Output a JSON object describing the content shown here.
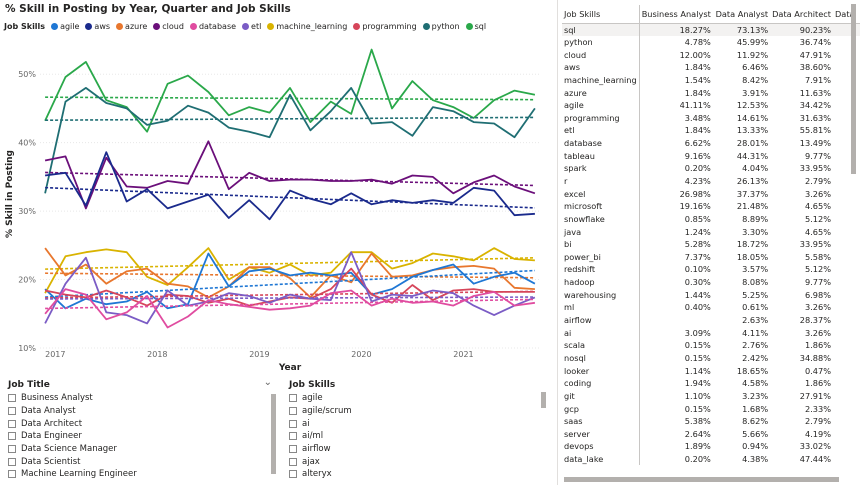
{
  "chart": {
    "title": "% Skill in Posting by Year, Quarter and Job Skills",
    "legend_title": "Job Skills",
    "legend": [
      {
        "name": "agile",
        "color": "#1f77d4"
      },
      {
        "name": "aws",
        "color": "#1a2a8c"
      },
      {
        "name": "azure",
        "color": "#e8772e"
      },
      {
        "name": "cloud",
        "color": "#6b0f7a"
      },
      {
        "name": "database",
        "color": "#e04ca0"
      },
      {
        "name": "etl",
        "color": "#7b5cc5"
      },
      {
        "name": "machine_learning",
        "color": "#d9b300"
      },
      {
        "name": "programming",
        "color": "#d6455a"
      },
      {
        "name": "python",
        "color": "#1f6e73"
      },
      {
        "name": "sql",
        "color": "#2aa84a"
      }
    ]
  },
  "chart_data": {
    "type": "line",
    "title": "% Skill in Posting by Year, Quarter and Job Skills",
    "xlabel": "Year",
    "ylabel": "% Skill in Posting",
    "x_ticks": [
      "2017",
      "2018",
      "2019",
      "2020",
      "2021"
    ],
    "y_ticks": [
      "10%",
      "20%",
      "30%",
      "40%",
      "50%"
    ],
    "ylim": [
      10,
      55
    ],
    "x": [
      2016.9,
      2017.1,
      2017.3,
      2017.5,
      2017.7,
      2017.9,
      2018.1,
      2018.3,
      2018.5,
      2018.7,
      2018.9,
      2019.1,
      2019.3,
      2019.5,
      2019.7,
      2019.9,
      2020.1,
      2020.3,
      2020.5,
      2020.7,
      2020.9,
      2021.1,
      2021.3,
      2021.5,
      2021.7
    ],
    "xlim": [
      2016.85,
      2021.75
    ],
    "trendlines": true,
    "series": [
      {
        "name": "sql",
        "values": [
          43.2,
          49.6,
          51.8,
          46.2,
          45.2,
          41.6,
          48.6,
          49.8,
          47.4,
          44.0,
          45.2,
          44.4,
          48.0,
          43.0,
          46.0,
          44.2,
          53.6,
          45.0,
          49.0,
          46.2,
          45.2,
          43.6,
          46.2,
          47.6,
          47.0
        ]
      },
      {
        "name": "python",
        "values": [
          32.6,
          46.0,
          48.0,
          45.8,
          45.0,
          42.6,
          43.2,
          45.4,
          44.4,
          42.2,
          41.6,
          40.8,
          47.0,
          41.8,
          44.6,
          48.0,
          42.8,
          43.0,
          41.0,
          45.2,
          44.6,
          43.0,
          42.8,
          40.8,
          45.0
        ]
      },
      {
        "name": "cloud",
        "values": [
          37.4,
          38.0,
          30.4,
          37.8,
          33.6,
          33.4,
          34.4,
          34.0,
          40.2,
          33.2,
          35.6,
          34.4,
          34.6,
          34.6,
          34.4,
          34.4,
          34.6,
          34.0,
          35.2,
          35.0,
          32.6,
          34.2,
          35.2,
          33.6,
          32.6
        ]
      },
      {
        "name": "aws",
        "values": [
          35.2,
          35.6,
          30.8,
          38.6,
          31.4,
          33.2,
          30.4,
          31.4,
          32.4,
          29.0,
          31.6,
          28.8,
          33.0,
          31.8,
          31.0,
          32.6,
          31.0,
          31.6,
          31.2,
          31.6,
          31.2,
          33.4,
          33.0,
          29.4,
          29.6
        ]
      },
      {
        "name": "machine_learning",
        "values": [
          18.0,
          23.4,
          24.0,
          24.4,
          24.0,
          20.4,
          19.2,
          21.8,
          24.6,
          20.0,
          21.8,
          21.0,
          22.2,
          20.6,
          21.0,
          24.0,
          24.0,
          21.6,
          22.4,
          23.8,
          23.4,
          22.8,
          24.6,
          23.0,
          22.8
        ]
      },
      {
        "name": "azure",
        "values": [
          24.6,
          20.6,
          22.2,
          19.4,
          21.2,
          21.6,
          19.4,
          19.0,
          17.4,
          19.0,
          21.8,
          21.8,
          20.2,
          17.4,
          20.6,
          19.6,
          23.8,
          20.4,
          20.6,
          21.4,
          21.8,
          22.0,
          21.6,
          18.8,
          18.6
        ]
      },
      {
        "name": "agile",
        "values": [
          18.6,
          15.8,
          17.2,
          16.4,
          16.8,
          18.2,
          15.8,
          16.4,
          23.8,
          19.0,
          21.2,
          21.6,
          20.6,
          21.0,
          20.6,
          21.0,
          17.8,
          18.6,
          20.4,
          21.4,
          22.2,
          19.4,
          20.4,
          21.0,
          19.4
        ]
      },
      {
        "name": "programming",
        "values": [
          18.4,
          17.8,
          17.4,
          18.4,
          17.4,
          16.2,
          17.8,
          17.6,
          16.6,
          17.2,
          16.2,
          16.8,
          17.4,
          17.2,
          18.6,
          21.6,
          17.8,
          16.6,
          19.2,
          17.0,
          18.4,
          18.6,
          18.2,
          18.2,
          18.2
        ]
      },
      {
        "name": "etl",
        "values": [
          13.6,
          19.4,
          23.2,
          15.2,
          14.8,
          13.6,
          18.4,
          16.2,
          16.8,
          18.0,
          17.6,
          16.6,
          17.8,
          17.2,
          17.0,
          24.0,
          16.8,
          17.8,
          17.6,
          18.4,
          18.0,
          16.2,
          14.8,
          16.2,
          17.4
        ]
      },
      {
        "name": "database",
        "values": [
          15.0,
          18.6,
          17.8,
          14.2,
          15.2,
          17.6,
          13.0,
          14.6,
          17.0,
          16.4,
          16.0,
          15.6,
          15.8,
          16.2,
          18.0,
          18.4,
          16.2,
          17.2,
          16.6,
          16.8,
          16.2,
          17.6,
          18.2,
          16.2,
          16.6
        ]
      }
    ]
  },
  "job_title_slicer": {
    "title": "Job Title",
    "items": [
      "Business Analyst",
      "Data Analyst",
      "Data Architect",
      "Data Engineer",
      "Data Science Manager",
      "Data Scientist",
      "Machine Learning Engineer"
    ]
  },
  "job_skills_slicer": {
    "title": "Job Skills",
    "items": [
      "agile",
      "agile/scrum",
      "ai",
      "ai/ml",
      "airflow",
      "ajax",
      "alteryx"
    ]
  },
  "table": {
    "headers": [
      "Job Skills",
      "Business Analyst",
      "Data Analyst",
      "Data Architect",
      "Data"
    ],
    "rows": [
      [
        "sql",
        "18.27%",
        "73.13%",
        "90.23%"
      ],
      [
        "python",
        "4.78%",
        "45.99%",
        "36.74%"
      ],
      [
        "cloud",
        "12.00%",
        "11.92%",
        "47.91%"
      ],
      [
        "aws",
        "1.84%",
        "6.46%",
        "38.60%"
      ],
      [
        "machine_learning",
        "1.54%",
        "8.42%",
        "7.91%"
      ],
      [
        "azure",
        "1.84%",
        "3.91%",
        "11.63%"
      ],
      [
        "agile",
        "41.11%",
        "12.53%",
        "34.42%"
      ],
      [
        "programming",
        "3.48%",
        "14.61%",
        "31.63%"
      ],
      [
        "etl",
        "1.84%",
        "13.33%",
        "55.81%"
      ],
      [
        "database",
        "6.62%",
        "28.01%",
        "13.49%"
      ],
      [
        "tableau",
        "9.16%",
        "44.31%",
        "9.77%"
      ],
      [
        "spark",
        "0.20%",
        "4.04%",
        "33.95%"
      ],
      [
        "r",
        "4.23%",
        "26.13%",
        "2.79%"
      ],
      [
        "excel",
        "26.98%",
        "37.37%",
        "3.26%"
      ],
      [
        "microsoft",
        "19.16%",
        "21.48%",
        "4.65%"
      ],
      [
        "snowflake",
        "0.85%",
        "8.89%",
        "5.12%"
      ],
      [
        "java",
        "1.24%",
        "3.30%",
        "4.65%"
      ],
      [
        "bi",
        "5.28%",
        "18.72%",
        "33.95%"
      ],
      [
        "power_bi",
        "7.37%",
        "18.05%",
        "5.58%"
      ],
      [
        "redshift",
        "0.10%",
        "3.57%",
        "5.12%"
      ],
      [
        "hadoop",
        "0.30%",
        "8.08%",
        "9.77%"
      ],
      [
        "warehousing",
        "1.44%",
        "5.25%",
        "6.98%"
      ],
      [
        "ml",
        "0.40%",
        "0.61%",
        "3.26%"
      ],
      [
        "airflow",
        "",
        "2.63%",
        "28.37%"
      ],
      [
        "ai",
        "3.09%",
        "4.11%",
        "3.26%"
      ],
      [
        "scala",
        "0.15%",
        "2.76%",
        "1.86%"
      ],
      [
        "nosql",
        "0.15%",
        "2.42%",
        "34.88%"
      ],
      [
        "looker",
        "1.14%",
        "18.65%",
        "0.47%"
      ],
      [
        "coding",
        "1.94%",
        "4.58%",
        "1.86%"
      ],
      [
        "git",
        "1.10%",
        "3.23%",
        "27.91%"
      ],
      [
        "gcp",
        "0.15%",
        "1.68%",
        "2.33%"
      ],
      [
        "saas",
        "5.38%",
        "8.62%",
        "2.79%"
      ],
      [
        "server",
        "2.64%",
        "5.66%",
        "4.19%"
      ],
      [
        "devops",
        "1.89%",
        "0.94%",
        "33.02%"
      ],
      [
        "data_lake",
        "0.20%",
        "4.38%",
        "47.44%"
      ]
    ]
  }
}
